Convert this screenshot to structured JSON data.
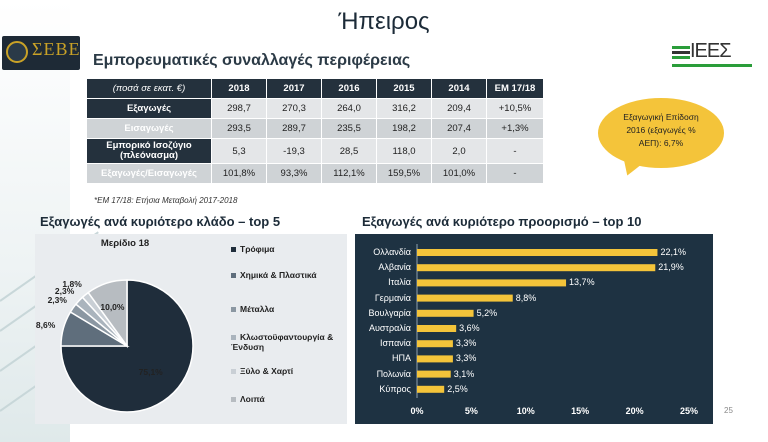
{
  "title": "Ήπειρος",
  "subtitle": "Εμπορευματικές συναλλαγές περιφέρειας",
  "logos": {
    "left": "ΣΕΒΕ",
    "right": "ΙΕΕΣ"
  },
  "table": {
    "header": [
      "(ποσά σε εκατ. €)",
      "2018",
      "2017",
      "2016",
      "2015",
      "2014",
      "ΕΜ 17/18"
    ],
    "rows": [
      {
        "label": "Εξαγωγές",
        "values": [
          "298,7",
          "270,3",
          "264,0",
          "316,2",
          "209,4",
          "+10,5%"
        ]
      },
      {
        "label": "Εισαγωγές",
        "values": [
          "293,5",
          "289,7",
          "235,5",
          "198,2",
          "207,4",
          "+1,3%"
        ]
      },
      {
        "label": "Εμπορικό Ισοζύγιο (πλεόνασμα)",
        "values": [
          "5,3",
          "-19,3",
          "28,5",
          "118,0",
          "2,0",
          "-"
        ]
      },
      {
        "label": "Εξαγωγές/Εισαγωγές",
        "values": [
          "101,8%",
          "93,3%",
          "112,1%",
          "159,5%",
          "101,0%",
          "-"
        ]
      }
    ]
  },
  "note": "*ΕΜ 17/18: Ετήσια Μεταβολή 2017-2018",
  "bubble": {
    "line1": "Εξαγωγική Επίδοση",
    "line2": "2016 (εξαγωγές %",
    "line3": "ΑΕΠ): 6,7%"
  },
  "left_section_title": "Εξαγωγές ανά κυριότερο κλάδο – top 5",
  "right_section_title": "Εξαγωγές ανά κυριότερο προορισμό – top 10",
  "page_number": "25",
  "colors": {
    "navy": "#24313d",
    "gold": "#f4c43a",
    "panel": "#1e3242"
  },
  "chart_data": [
    {
      "type": "pie",
      "title": "Μερίδιο 18",
      "labels": [
        "Τρόφιμα",
        "Χημικά & Πλαστικά",
        "Μέταλλα",
        "Κλωστοϋφαντουργία & Ένδυση",
        "Ξύλο & Χαρτί",
        "Λοιπά"
      ],
      "values": [
        75.1,
        8.6,
        2.3,
        2.3,
        1.8,
        10.0
      ],
      "value_labels": [
        "75,1%",
        "8,6%",
        "2,3%",
        "2,3%",
        "1,8%",
        "10,0%"
      ],
      "colors": [
        "#1f2d3b",
        "#5f6e7c",
        "#8b97a2",
        "#aab4bd",
        "#c9cfd5",
        "#b7bcc1"
      ],
      "legend": "right"
    },
    {
      "type": "bar",
      "orientation": "horizontal",
      "categories": [
        "Ολλανδία",
        "Αλβανία",
        "Ιταλία",
        "Γερμανία",
        "Βουλγαρία",
        "Αυστραλία",
        "Ισπανία",
        "ΗΠΑ",
        "Πολωνία",
        "Κύπρος"
      ],
      "values": [
        22.1,
        21.9,
        13.7,
        8.8,
        5.2,
        3.6,
        3.3,
        3.3,
        3.1,
        2.5
      ],
      "value_labels": [
        "22,1%",
        "21,9%",
        "13,7%",
        "8,8%",
        "5,2%",
        "3,6%",
        "3,3%",
        "3,3%",
        "3,1%",
        "2,5%"
      ],
      "xlim": [
        0,
        25
      ],
      "xticks": [
        "0%",
        "5%",
        "10%",
        "15%",
        "20%",
        "25%"
      ],
      "color": "#f4c43a",
      "grid": false
    }
  ]
}
